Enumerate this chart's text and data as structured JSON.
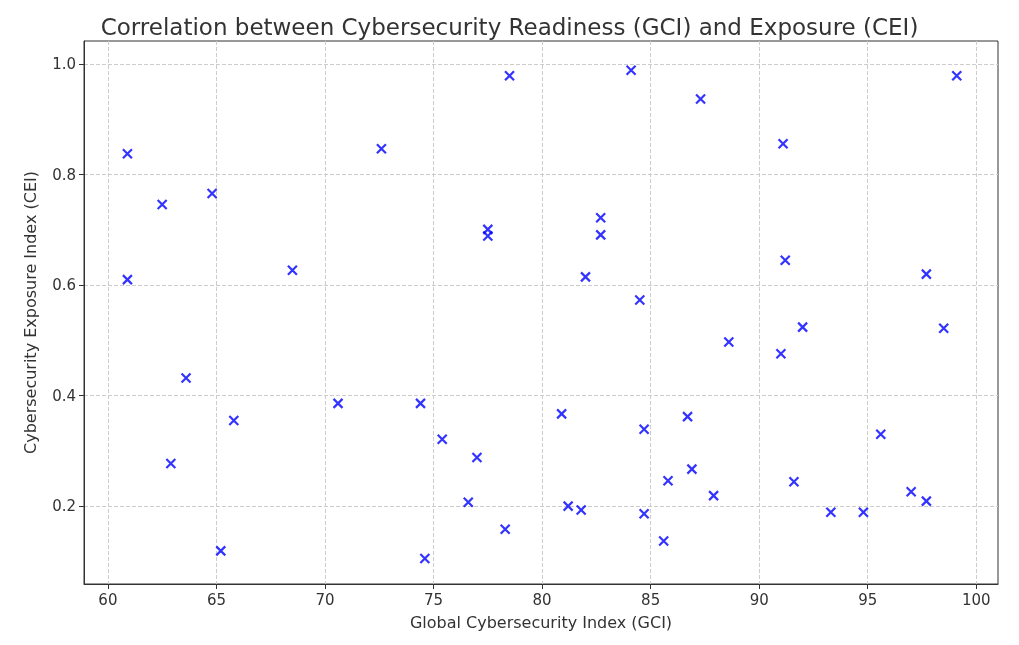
{
  "chart_data": {
    "type": "scatter",
    "title": "Correlation between Cybersecurity Readiness (GCI) and Exposure (CEI)",
    "xlabel": "Global Cybersecurity Index (GCI)",
    "ylabel": "Cybersecurity Exposure Index (CEI)",
    "series": [
      {
        "color": "#0000ff",
        "x": [
          60.9,
          60.9,
          62.5,
          62.9,
          63.6,
          64.8,
          65.2,
          65.8,
          68.5,
          70.6,
          72.6,
          74.4,
          74.6,
          75.4,
          77.0,
          76.6,
          77.5,
          77.5,
          78.3,
          78.5,
          80.9,
          81.2,
          81.8,
          82.0,
          82.7,
          82.7,
          84.1,
          84.5,
          84.7,
          84.7,
          85.6,
          85.8,
          86.7,
          86.9,
          87.3,
          87.9,
          88.6,
          91.0,
          91.1,
          91.2,
          91.6,
          92.0,
          93.3,
          94.8,
          95.6,
          97.0,
          97.7,
          97.7,
          98.5,
          99.1
        ],
        "values": [
          0.838,
          0.61,
          0.746,
          0.277,
          0.432,
          0.766,
          0.119,
          0.355,
          0.627,
          0.386,
          0.847,
          0.386,
          0.105,
          0.321,
          0.288,
          0.207,
          0.701,
          0.689,
          0.158,
          0.979,
          0.367,
          0.2,
          0.193,
          0.615,
          0.722,
          0.691,
          0.989,
          0.573,
          0.339,
          0.186,
          0.137,
          0.246,
          0.362,
          0.267,
          0.937,
          0.219,
          0.497,
          0.476,
          0.856,
          0.645,
          0.244,
          0.524,
          0.189,
          0.189,
          0.33,
          0.226,
          0.209,
          0.62,
          0.522,
          0.979
        ]
      }
    ],
    "xlim": [
      58.9,
      101.0
    ],
    "xticks": [
      60,
      65,
      70,
      75,
      80,
      85,
      90,
      95,
      100
    ],
    "ylim": [
      0.059,
      1.042
    ],
    "yticks": [
      {
        "value": 0.2,
        "label": "0.2"
      },
      {
        "value": 0.4,
        "label": "0.4"
      },
      {
        "value": 0.6,
        "label": "0.6"
      },
      {
        "value": 0.8,
        "label": "0.8"
      },
      {
        "value": 1.0,
        "label": "1.0"
      }
    ],
    "grid": true,
    "marker": "cross"
  }
}
